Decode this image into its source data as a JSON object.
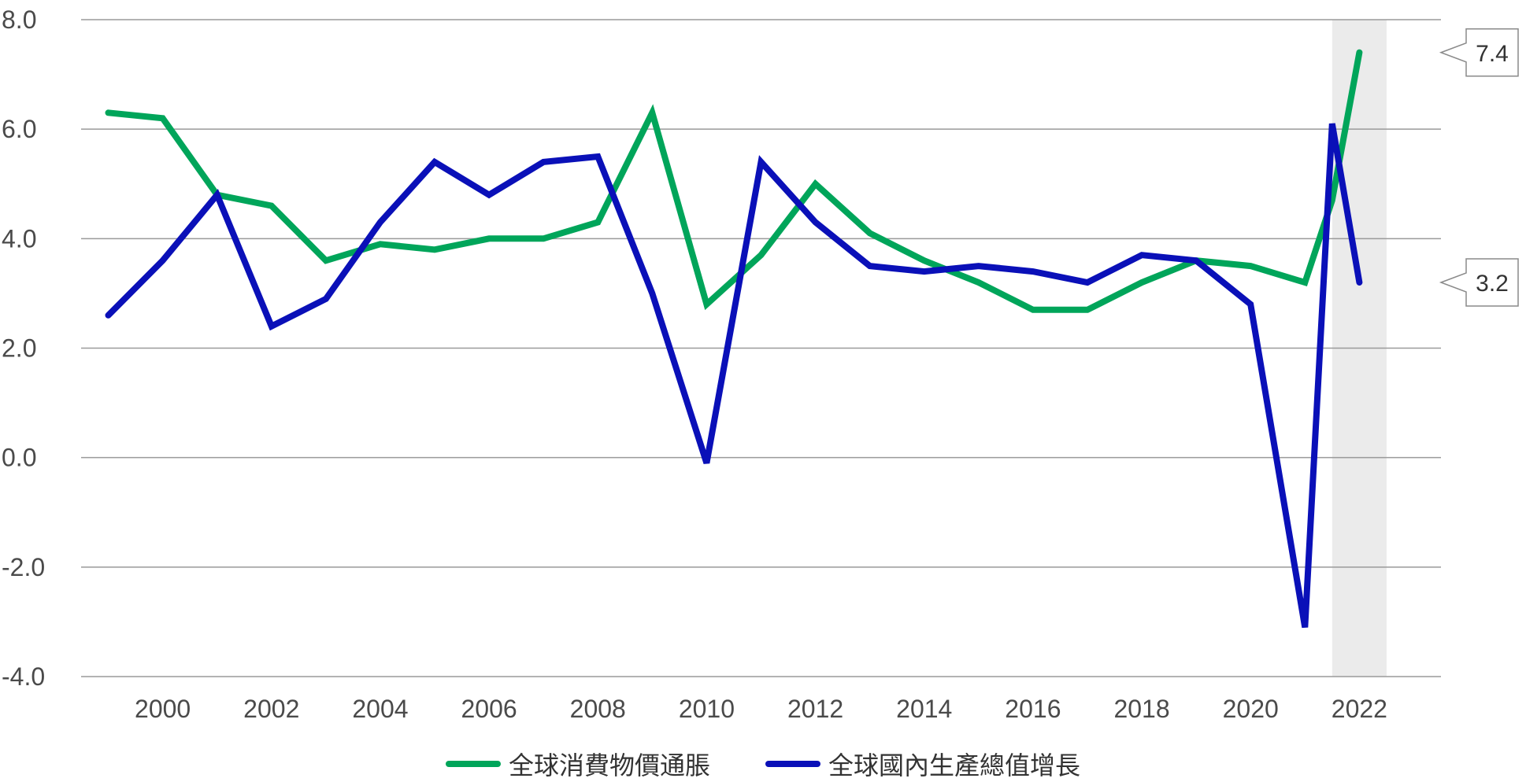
{
  "chart_data": {
    "type": "line",
    "title": "",
    "xlabel": "",
    "ylabel": "",
    "x": [
      1999,
      2000,
      2001,
      2002,
      2003,
      2004,
      2005,
      2006,
      2007,
      2008,
      2009,
      2010,
      2011,
      2012,
      2013,
      2014,
      2015,
      2016,
      2017,
      2018,
      2019,
      2020,
      2021,
      2022
    ],
    "xlim": [
      1998.5,
      2023.5
    ],
    "ylim": [
      -4.0,
      8.0
    ],
    "yticks": [
      8.0,
      6.0,
      4.0,
      2.0,
      0.0,
      -2.0,
      -4.0
    ],
    "ytick_labels": [
      "8.0",
      "6.0",
      "4.0",
      "2.0",
      "0.0",
      "-2.0",
      "-4.0"
    ],
    "xticks": [
      2000,
      2002,
      2004,
      2006,
      2008,
      2010,
      2012,
      2014,
      2016,
      2018,
      2020,
      2022
    ],
    "xtick_labels": [
      "2000",
      "2002",
      "2004",
      "2006",
      "2008",
      "2010",
      "2012",
      "2014",
      "2016",
      "2018",
      "2020",
      "2022"
    ],
    "grid": "horizontal",
    "highlight": {
      "from": 2021.5,
      "to": 2022.5,
      "color": "#ebebeb"
    },
    "series": [
      {
        "name": "全球消費物價通脹",
        "color": "#00a55a",
        "values": [
          6.3,
          6.2,
          4.8,
          4.6,
          3.6,
          3.9,
          3.8,
          4.0,
          4.0,
          4.3,
          6.3,
          2.8,
          3.7,
          5.0,
          4.1,
          3.6,
          3.2,
          2.7,
          2.7,
          3.2,
          3.6,
          3.5,
          3.2,
          4.7,
          7.4
        ],
        "x": [
          1999,
          2000,
          2001,
          2002,
          2003,
          2004,
          2005,
          2006,
          2007,
          2008,
          2009,
          2010,
          2011,
          2012,
          2013,
          2014,
          2015,
          2016,
          2017,
          2018,
          2019,
          2020,
          2021,
          2021.5,
          2022
        ]
      },
      {
        "name": "全球國內生產總值增長",
        "color": "#0a10b8",
        "values": [
          2.6,
          3.6,
          4.8,
          2.4,
          2.9,
          4.3,
          5.4,
          4.8,
          5.4,
          5.5,
          3.0,
          -0.1,
          5.4,
          4.3,
          3.5,
          3.4,
          3.5,
          3.4,
          3.2,
          3.7,
          3.6,
          2.8,
          -3.1,
          6.1,
          3.2
        ],
        "x": [
          1999,
          2000,
          2001,
          2002,
          2003,
          2004,
          2005,
          2006,
          2007,
          2008,
          2009,
          2010,
          2011,
          2012,
          2013,
          2014,
          2015,
          2016,
          2017,
          2018,
          2019,
          2020,
          2021,
          2021.5,
          2022
        ]
      }
    ],
    "callouts": [
      {
        "text": "7.4",
        "value": 7.4
      },
      {
        "text": "3.2",
        "value": 3.2
      }
    ],
    "legend_position": "bottom"
  }
}
